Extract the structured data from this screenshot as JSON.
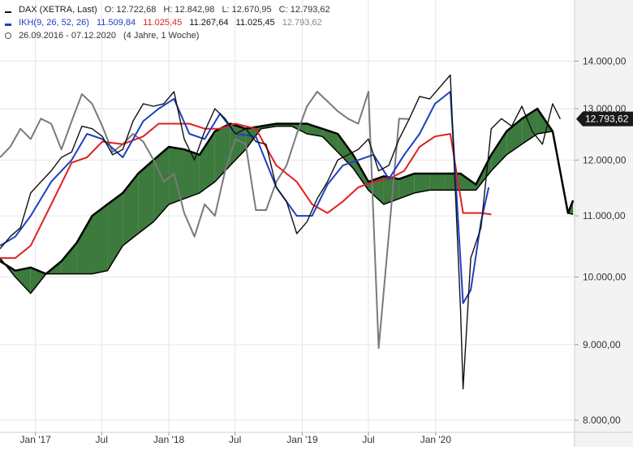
{
  "header": {
    "symbol_line": {
      "name": "DAX (XETRA, Last)",
      "open": "O: 12.722,68",
      "high": "H: 12.842,98",
      "low": "L: 12.670,95",
      "close": "C: 12.793,62"
    },
    "ikh_line": {
      "name": "IKH(9, 26, 52, 26)",
      "tenkan": "11.509,84",
      "kijun": "11.025,45",
      "span_a": "11.267,64",
      "span_b": "11.025,45",
      "chikou": "12.793,62"
    },
    "range_line": {
      "range": "26.09.2016 - 07.12.2020",
      "span": "(4 Jahre, 1 Woche)"
    }
  },
  "colors": {
    "price": "#111111",
    "tenkan": "#1f3fbf",
    "kijun": "#e02020",
    "chikou": "#7a7a7a",
    "cloud_bull": "#3d7a3d",
    "cloud_bear": "#ff4a4a",
    "grid": "#e6e6e6",
    "axis_bg": "#f3f3f3",
    "last_price_bg": "#1a1a1a"
  },
  "chart_data": {
    "type": "line",
    "y_scale": "log",
    "ylim": [
      7850,
      15400
    ],
    "yticks": [
      8000,
      9000,
      10000,
      11000,
      12000,
      13000,
      14000
    ],
    "ytick_labels": [
      "8.000,00",
      "9.000,00",
      "10.000,00",
      "11.000,00",
      "12.000,00",
      "13.000,00",
      "14.000,00"
    ],
    "xlim": [
      "2016-09-26",
      "2021-01-15"
    ],
    "xticks": [
      "2017-01-01",
      "2017-07-01",
      "2018-01-01",
      "2018-07-01",
      "2019-01-01",
      "2019-07-01",
      "2020-01-01"
    ],
    "xtick_labels": [
      "Jan '17",
      "Jul",
      "Jan '18",
      "Jul",
      "Jan '19",
      "Jul",
      "Jan '20"
    ],
    "last_price": 12793.62,
    "last_price_label": "12.793,62",
    "grid": true,
    "series": [
      {
        "key": "price",
        "x": [
          "2016-09-26",
          "2016-10-24",
          "2016-11-21",
          "2016-12-19",
          "2017-01-16",
          "2017-02-13",
          "2017-03-13",
          "2017-04-10",
          "2017-05-08",
          "2017-06-05",
          "2017-07-03",
          "2017-07-31",
          "2017-08-28",
          "2017-09-25",
          "2017-10-23",
          "2017-11-20",
          "2017-12-18",
          "2018-01-15",
          "2018-02-12",
          "2018-03-12",
          "2018-04-09",
          "2018-05-07",
          "2018-06-04",
          "2018-07-02",
          "2018-07-30",
          "2018-08-27",
          "2018-09-24",
          "2018-10-22",
          "2018-11-19",
          "2018-12-17",
          "2019-01-14",
          "2019-02-11",
          "2019-03-11",
          "2019-04-08",
          "2019-05-06",
          "2019-06-03",
          "2019-07-01",
          "2019-07-29",
          "2019-08-26",
          "2019-09-23",
          "2019-10-21",
          "2019-11-18",
          "2019-12-16",
          "2020-01-13",
          "2020-02-10",
          "2020-03-09",
          "2020-03-16",
          "2020-04-06",
          "2020-05-04",
          "2020-06-01",
          "2020-06-29",
          "2020-07-27",
          "2020-08-24",
          "2020-09-21",
          "2020-10-19",
          "2020-11-16",
          "2020-12-07"
        ],
        "values": [
          10450,
          10650,
          10800,
          11400,
          11600,
          11800,
          12050,
          12150,
          12650,
          12600,
          12450,
          12100,
          12200,
          12750,
          13100,
          13050,
          13100,
          13350,
          12400,
          12000,
          12550,
          13000,
          12800,
          12500,
          12600,
          12350,
          12300,
          11500,
          11250,
          10700,
          10900,
          11300,
          11600,
          12000,
          12100,
          12200,
          12400,
          11800,
          11900,
          12400,
          12800,
          13250,
          13200,
          13450,
          13700,
          9500,
          8400,
          10300,
          10800,
          12600,
          12800,
          12650,
          13050,
          12550,
          12300,
          13100,
          12793.62
        ]
      },
      {
        "key": "tenkan",
        "x": [
          "2016-09-26",
          "2016-11-07",
          "2016-12-19",
          "2017-02-13",
          "2017-04-10",
          "2017-05-22",
          "2017-07-03",
          "2017-08-28",
          "2017-10-23",
          "2017-12-04",
          "2018-01-15",
          "2018-02-26",
          "2018-04-09",
          "2018-05-21",
          "2018-07-02",
          "2018-08-27",
          "2018-10-22",
          "2018-12-17",
          "2019-01-28",
          "2019-03-11",
          "2019-04-22",
          "2019-06-03",
          "2019-07-15",
          "2019-08-26",
          "2019-10-07",
          "2019-11-18",
          "2019-12-30",
          "2020-02-10",
          "2020-03-16",
          "2020-04-06",
          "2020-05-04",
          "2020-05-25"
        ],
        "values": [
          10500,
          10650,
          11000,
          11600,
          12000,
          12500,
          12400,
          12050,
          12750,
          13000,
          13200,
          12500,
          12400,
          12900,
          12500,
          12450,
          11500,
          11000,
          11000,
          11550,
          11900,
          12000,
          12100,
          11650,
          12100,
          12500,
          13100,
          13350,
          9600,
          9800,
          10900,
          11500
        ]
      },
      {
        "key": "kijun",
        "x": [
          "2016-09-26",
          "2016-11-07",
          "2016-12-19",
          "2017-02-13",
          "2017-04-10",
          "2017-05-22",
          "2017-07-03",
          "2017-08-28",
          "2017-10-23",
          "2017-12-04",
          "2018-01-15",
          "2018-02-26",
          "2018-04-09",
          "2018-05-21",
          "2018-07-02",
          "2018-08-27",
          "2018-10-22",
          "2018-12-17",
          "2019-01-28",
          "2019-03-11",
          "2019-04-22",
          "2019-06-03",
          "2019-07-15",
          "2019-08-26",
          "2019-10-07",
          "2019-11-18",
          "2019-12-30",
          "2020-02-10",
          "2020-03-16",
          "2020-04-06",
          "2020-05-04",
          "2020-06-01"
        ],
        "values": [
          10300,
          10300,
          10500,
          11200,
          11950,
          12050,
          12350,
          12300,
          12450,
          12700,
          12700,
          12700,
          12600,
          12600,
          12700,
          12600,
          11900,
          11600,
          11200,
          11050,
          11250,
          11500,
          11600,
          11650,
          11800,
          12250,
          12450,
          12500,
          11050,
          11050,
          11050,
          11025.45
        ]
      },
      {
        "key": "chikou",
        "x": [
          "2016-09-26",
          "2016-10-24",
          "2016-11-21",
          "2016-12-19",
          "2017-01-16",
          "2017-02-13",
          "2017-03-13",
          "2017-04-10",
          "2017-05-08",
          "2017-06-05",
          "2017-07-03",
          "2017-07-31",
          "2017-08-28",
          "2017-09-25",
          "2017-10-23",
          "2017-11-20",
          "2017-12-18",
          "2018-01-15",
          "2018-02-12",
          "2018-03-12",
          "2018-04-09",
          "2018-05-07",
          "2018-06-04",
          "2018-07-02",
          "2018-07-30",
          "2018-08-27",
          "2018-09-24",
          "2018-10-22",
          "2018-11-19",
          "2018-12-17",
          "2019-01-14",
          "2019-02-11",
          "2019-03-11",
          "2019-04-08",
          "2019-05-06",
          "2019-06-03",
          "2019-07-01",
          "2019-07-29",
          "2019-08-26",
          "2019-09-23",
          "2019-10-21"
        ],
        "values": [
          12050,
          12250,
          12600,
          12400,
          12800,
          12700,
          12200,
          12750,
          13300,
          13100,
          12650,
          12150,
          12300,
          12500,
          12350,
          12000,
          11600,
          11750,
          11050,
          10650,
          11200,
          11000,
          11800,
          12400,
          12300,
          11100,
          11100,
          11600,
          11900,
          12500,
          13050,
          13350,
          13150,
          12950,
          12800,
          12700,
          13350,
          8950,
          10700,
          12800,
          12793.62
        ]
      }
    ],
    "cloud": {
      "x": [
        "2016-09-26",
        "2016-11-07",
        "2016-12-19",
        "2017-01-30",
        "2017-03-13",
        "2017-04-24",
        "2017-06-05",
        "2017-07-17",
        "2017-08-28",
        "2017-10-09",
        "2017-11-20",
        "2018-01-01",
        "2018-02-12",
        "2018-03-26",
        "2018-05-07",
        "2018-06-18",
        "2018-07-30",
        "2018-09-10",
        "2018-10-22",
        "2018-12-03",
        "2019-01-14",
        "2019-02-25",
        "2019-04-08",
        "2019-05-20",
        "2019-07-01",
        "2019-08-12",
        "2019-09-23",
        "2019-11-04",
        "2019-12-16",
        "2020-01-27",
        "2020-03-09",
        "2020-04-20",
        "2020-06-01",
        "2020-07-13",
        "2020-08-24",
        "2020-10-05",
        "2020-11-16",
        "2020-12-28",
        "2021-01-11"
      ],
      "span_a": [
        10250,
        10100,
        10150,
        10050,
        10250,
        10550,
        11000,
        11200,
        11400,
        11750,
        12000,
        12250,
        12200,
        12100,
        12550,
        12700,
        12600,
        12650,
        12700,
        12700,
        12700,
        12600,
        12500,
        12100,
        11600,
        11700,
        11650,
        11750,
        11750,
        11750,
        11750,
        11550,
        12100,
        12550,
        12800,
        13000,
        12550,
        11050,
        11267.64
      ],
      "span_b": [
        10300,
        10000,
        9750,
        10050,
        10050,
        10050,
        10050,
        10100,
        10500,
        10700,
        10900,
        11200,
        11300,
        11400,
        11600,
        11900,
        12200,
        12600,
        12650,
        12650,
        12500,
        12450,
        12150,
        11850,
        11450,
        11200,
        11300,
        11400,
        11450,
        11450,
        11450,
        11450,
        11800,
        12100,
        12300,
        12500,
        12550,
        11050,
        11025.45
      ]
    },
    "title": "",
    "xlabel": "",
    "ylabel": ""
  }
}
